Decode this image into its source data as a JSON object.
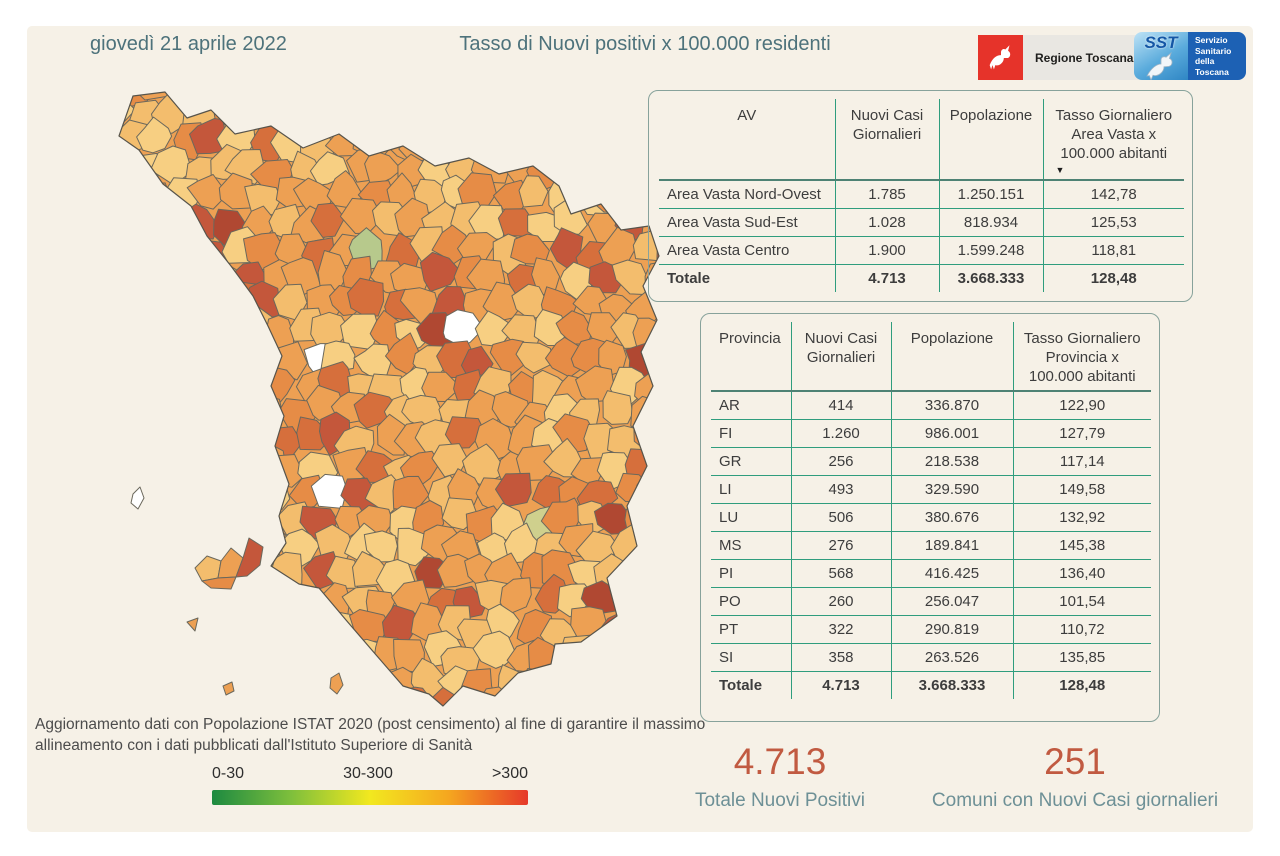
{
  "header": {
    "date": "giovedì 21 aprile 2022",
    "title": "Tasso di Nuovi positivi x 100.000 residenti"
  },
  "logos": {
    "regione_toscana": {
      "label": "Regione Toscana"
    },
    "sst": {
      "abbr": "SST",
      "line1": "Servizio",
      "line2": "Sanitario",
      "line3": "della",
      "line4": "Toscana"
    }
  },
  "footnote": "Aggiornamento dati con Popolazione ISTAT 2020 (post censimento) al fine di garantire il massimo allineamento con i dati pubblicati dall'Istituto Superiore di Sanità",
  "stats": [
    {
      "value": "4.713",
      "label": "Totale Nuovi Positivi"
    },
    {
      "value": "251",
      "label": "Comuni con Nuovi Casi giornalieri"
    }
  ],
  "chart_data": [
    {
      "type": "table",
      "name": "area_vasta",
      "columns": [
        "AV",
        "Nuovi Casi Giornalieri",
        "Popolazione",
        "Tasso Giornaliero Area Vasta x 100.000 abitanti"
      ],
      "sort_icon": "▼",
      "rows": [
        [
          "Area Vasta Nord-Ovest",
          "1.785",
          "1.250.151",
          "142,78"
        ],
        [
          "Area Vasta Sud-Est",
          "1.028",
          "818.934",
          "125,53"
        ],
        [
          "Area Vasta Centro",
          "1.900",
          "1.599.248",
          "118,81"
        ],
        [
          "Totale",
          "4.713",
          "3.668.333",
          "128,48"
        ]
      ]
    },
    {
      "type": "table",
      "name": "provincia",
      "columns": [
        "Provincia",
        "Nuovi Casi Giornalieri",
        "Popolazione",
        "Tasso Giornaliero Provincia x 100.000 abitanti"
      ],
      "rows": [
        [
          "AR",
          "414",
          "336.870",
          "122,90"
        ],
        [
          "FI",
          "1.260",
          "986.001",
          "127,79"
        ],
        [
          "GR",
          "256",
          "218.538",
          "117,14"
        ],
        [
          "LI",
          "493",
          "329.590",
          "149,58"
        ],
        [
          "LU",
          "506",
          "380.676",
          "132,92"
        ],
        [
          "MS",
          "276",
          "189.841",
          "145,38"
        ],
        [
          "PI",
          "568",
          "416.425",
          "136,40"
        ],
        [
          "PO",
          "260",
          "256.047",
          "101,54"
        ],
        [
          "PT",
          "322",
          "290.819",
          "110,72"
        ],
        [
          "SI",
          "358",
          "263.526",
          "135,85"
        ],
        [
          "Totale",
          "4.713",
          "3.668.333",
          "128,48"
        ]
      ]
    },
    {
      "type": "choropleth",
      "name": "mappa_comuni_toscana",
      "region": "Toscana",
      "legend": {
        "labels": [
          "0-30",
          "30-300",
          ">300"
        ],
        "colors": [
          "#1d8a41",
          "#7ebf3c",
          "#f2e81f",
          "#f5a61f",
          "#e6392a"
        ]
      },
      "palette": {
        "white": "#ffffff",
        "green_light": "#b7c98c",
        "green_olive": "#cfd08d",
        "sand": "#f7cf82",
        "light_orange": "#f3bd6d",
        "orange": "#eda053",
        "mid_orange": "#e68c46",
        "dark_orange": "#d66f3c",
        "red_orange": "#c4573b",
        "dark_red": "#b04832",
        "stroke": "#6b685c"
      },
      "totals": {
        "totale_nuovi_positivi": "4.713",
        "comuni_con_nuovi_casi_giornalieri": "251"
      }
    }
  ]
}
